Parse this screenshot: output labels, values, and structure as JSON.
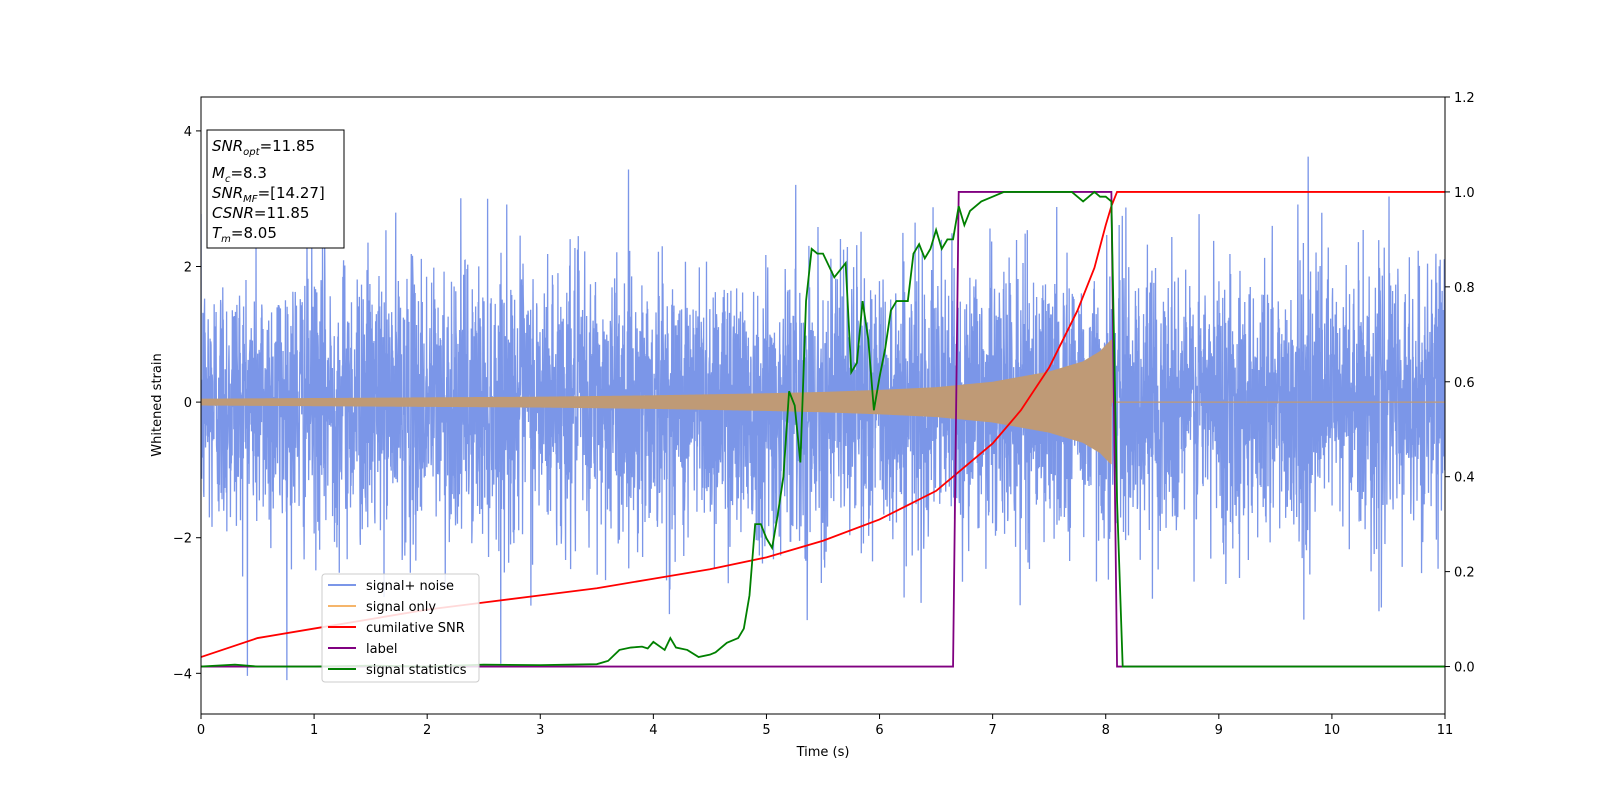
{
  "chart_data": {
    "type": "line",
    "title": "",
    "xlabel": "Time (s)",
    "ylabel": "Whitened strain",
    "y2label": "",
    "xlim": [
      0,
      11
    ],
    "ylim": [
      -4.6,
      4.5
    ],
    "y2lim": [
      -0.1,
      1.2
    ],
    "x_ticks": [
      "0",
      "1",
      "2",
      "3",
      "4",
      "5",
      "6",
      "7",
      "8",
      "9",
      "10",
      "11"
    ],
    "y_ticks": [
      "−4",
      "−2",
      "0",
      "2",
      "4"
    ],
    "y_tick_values": [
      -4,
      -2,
      0,
      2,
      4
    ],
    "y2_ticks": [
      "0.0",
      "0.2",
      "0.4",
      "0.6",
      "0.8",
      "1.0",
      "1.2"
    ],
    "y2_tick_values": [
      0.0,
      0.2,
      0.4,
      0.6,
      0.8,
      1.0,
      1.2
    ],
    "grid": false,
    "legend_position": "lower-left",
    "info_box": {
      "snr_opt": {
        "base": "SNR",
        "sub": "opt",
        "value": "=11.85"
      },
      "mc": {
        "base": "M",
        "sub": "c",
        "value": "=8.3"
      },
      "snr_mf": {
        "base": "SNR",
        "sub": "MF",
        "value": "=[14.27]"
      },
      "csnr": {
        "base": "CSNR",
        "value": "=11.85"
      },
      "tm": {
        "base": "T",
        "sub": "m",
        "value": "=8.05"
      }
    },
    "signal_noise": {
      "name": "signal+ noise",
      "axis": "left",
      "color": "#7b96e8",
      "x_range": [
        0,
        11
      ],
      "noise_std": 1.0,
      "noise_range": [
        -4.1,
        4.1
      ]
    },
    "signal_only": {
      "name": "signal only",
      "axis": "left",
      "color": "#f5b56b",
      "blend_color": "#bf9a76",
      "amplitude_envelope": {
        "x": [
          0,
          1,
          2,
          3,
          4,
          5,
          5.5,
          6,
          6.5,
          7,
          7.5,
          7.8,
          7.95,
          8.05
        ],
        "y": [
          0.05,
          0.06,
          0.07,
          0.08,
          0.1,
          0.13,
          0.15,
          0.18,
          0.22,
          0.3,
          0.45,
          0.6,
          0.75,
          0.92
        ]
      },
      "cutoff": 8.05
    },
    "cumulative_snr": {
      "name": "cumilative SNR",
      "axis": "right",
      "color": "#ff0000",
      "x": [
        0,
        0.5,
        1,
        1.5,
        2,
        2.5,
        3,
        3.5,
        4,
        4.5,
        5,
        5.5,
        6,
        6.5,
        7,
        7.25,
        7.5,
        7.75,
        7.9,
        8.0,
        8.05,
        8.1,
        11
      ],
      "y": [
        0.02,
        0.06,
        0.08,
        0.1,
        0.12,
        0.135,
        0.15,
        0.165,
        0.185,
        0.205,
        0.23,
        0.265,
        0.31,
        0.37,
        0.47,
        0.54,
        0.63,
        0.75,
        0.84,
        0.93,
        0.97,
        1.0,
        1.0
      ]
    },
    "label": {
      "name": "label",
      "axis": "right",
      "color": "#800080",
      "x": [
        0,
        6.65,
        6.7,
        8.05,
        8.1,
        11
      ],
      "y": [
        0,
        0,
        1,
        1,
        0,
        0
      ]
    },
    "signal_statistics": {
      "name": "signal statistics",
      "axis": "right",
      "color": "#008000",
      "x": [
        0,
        0.3,
        0.5,
        1,
        1.5,
        2,
        2.5,
        3,
        3.5,
        3.6,
        3.7,
        3.8,
        3.9,
        3.95,
        4.0,
        4.1,
        4.15,
        4.2,
        4.3,
        4.4,
        4.5,
        4.55,
        4.65,
        4.75,
        4.8,
        4.85,
        4.9,
        4.95,
        5.0,
        5.05,
        5.1,
        5.15,
        5.2,
        5.25,
        5.3,
        5.35,
        5.4,
        5.45,
        5.5,
        5.6,
        5.7,
        5.75,
        5.8,
        5.85,
        5.9,
        5.95,
        6.0,
        6.05,
        6.1,
        6.15,
        6.2,
        6.25,
        6.3,
        6.35,
        6.4,
        6.45,
        6.5,
        6.55,
        6.6,
        6.65,
        6.7,
        6.75,
        6.8,
        6.9,
        7.0,
        7.1,
        7.2,
        7.3,
        7.5,
        7.7,
        7.75,
        7.8,
        7.85,
        7.9,
        7.95,
        8.0,
        8.05,
        8.1,
        8.15,
        11
      ],
      "y": [
        0.0,
        0.004,
        0.0,
        0.0,
        0.002,
        0.0,
        0.004,
        0.003,
        0.005,
        0.012,
        0.035,
        0.04,
        0.042,
        0.038,
        0.052,
        0.035,
        0.06,
        0.04,
        0.035,
        0.02,
        0.025,
        0.03,
        0.05,
        0.06,
        0.08,
        0.15,
        0.3,
        0.3,
        0.27,
        0.25,
        0.32,
        0.4,
        0.58,
        0.55,
        0.43,
        0.77,
        0.88,
        0.87,
        0.87,
        0.82,
        0.85,
        0.62,
        0.64,
        0.77,
        0.69,
        0.54,
        0.61,
        0.67,
        0.75,
        0.77,
        0.77,
        0.77,
        0.87,
        0.89,
        0.86,
        0.88,
        0.92,
        0.88,
        0.9,
        0.9,
        0.97,
        0.93,
        0.96,
        0.98,
        0.99,
        1.0,
        1.0,
        1.0,
        1.0,
        1.0,
        0.99,
        0.98,
        0.99,
        1.0,
        0.99,
        0.99,
        0.98,
        0.35,
        0.0,
        0.0
      ]
    }
  }
}
